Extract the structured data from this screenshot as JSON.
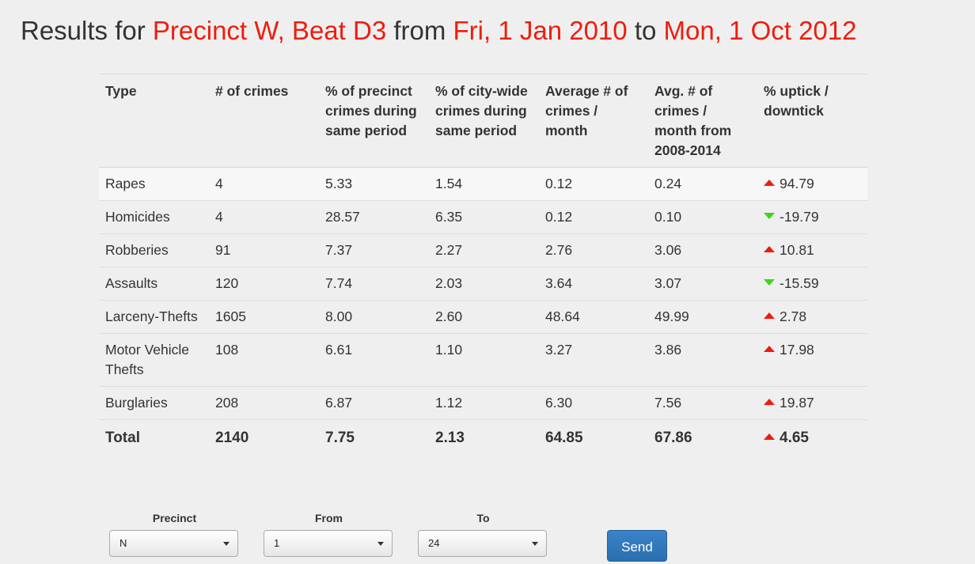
{
  "title": {
    "prefix": "Results for",
    "location": "Precinct W, Beat D3",
    "from_word": "from",
    "start_date": "Fri, 1 Jan 2010",
    "to_word": "to",
    "end_date": "Mon, 1 Oct 2012"
  },
  "table": {
    "headers": [
      "Type",
      "# of crimes",
      "% of precinct crimes during same period",
      "% of city-wide crimes during same period",
      "Average # of crimes / month",
      "Avg. # of crimes / month from 2008-2014",
      "% uptick / downtick"
    ],
    "rows": [
      {
        "type": "Rapes",
        "count": "4",
        "precinct_pct": "5.33",
        "city_pct": "1.54",
        "avg": "0.12",
        "avg_2008_2014": "0.24",
        "trend": "up",
        "change": "94.79"
      },
      {
        "type": "Homicides",
        "count": "4",
        "precinct_pct": "28.57",
        "city_pct": "6.35",
        "avg": "0.12",
        "avg_2008_2014": "0.10",
        "trend": "down",
        "change": "-19.79"
      },
      {
        "type": "Robberies",
        "count": "91",
        "precinct_pct": "7.37",
        "city_pct": "2.27",
        "avg": "2.76",
        "avg_2008_2014": "3.06",
        "trend": "up",
        "change": "10.81"
      },
      {
        "type": "Assaults",
        "count": "120",
        "precinct_pct": "7.74",
        "city_pct": "2.03",
        "avg": "3.64",
        "avg_2008_2014": "3.07",
        "trend": "down",
        "change": "-15.59"
      },
      {
        "type": "Larceny-Thefts",
        "count": "1605",
        "precinct_pct": "8.00",
        "city_pct": "2.60",
        "avg": "48.64",
        "avg_2008_2014": "49.99",
        "trend": "up",
        "change": "2.78"
      },
      {
        "type": "Motor Vehicle Thefts",
        "count": "108",
        "precinct_pct": "6.61",
        "city_pct": "1.10",
        "avg": "3.27",
        "avg_2008_2014": "3.86",
        "trend": "up",
        "change": "17.98"
      },
      {
        "type": "Burglaries",
        "count": "208",
        "precinct_pct": "6.87",
        "city_pct": "1.12",
        "avg": "6.30",
        "avg_2008_2014": "7.56",
        "trend": "up",
        "change": "19.87"
      }
    ],
    "total": {
      "type": "Total",
      "count": "2140",
      "precinct_pct": "7.75",
      "city_pct": "2.13",
      "avg": "64.85",
      "avg_2008_2014": "67.86",
      "trend": "up",
      "change": "4.65"
    }
  },
  "filters": {
    "precinct": {
      "label": "Precinct",
      "value": "N"
    },
    "from": {
      "label": "From",
      "value": "1"
    },
    "to": {
      "label": "To",
      "value": "24"
    }
  },
  "send_label": "Send",
  "colors": {
    "highlight": "#ee1c0e",
    "uptick": "#ee1c0e",
    "downtick": "#36d916",
    "button": "#2b6fae"
  },
  "icons": {
    "uptick": "triangle-up-icon",
    "downtick": "triangle-down-icon",
    "select_caret": "caret-down-icon"
  }
}
